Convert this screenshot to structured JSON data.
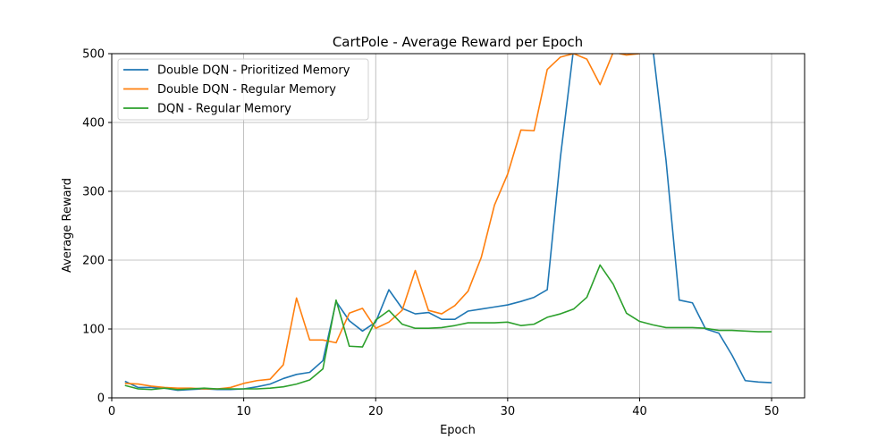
{
  "chart_data": {
    "type": "line",
    "title": "CartPole - Average Reward per Epoch",
    "xlabel": "Epoch",
    "ylabel": "Average Reward",
    "xlim": [
      0,
      52.5
    ],
    "ylim": [
      0,
      500
    ],
    "xticks": [
      0,
      10,
      20,
      30,
      40,
      50
    ],
    "yticks": [
      0,
      100,
      200,
      300,
      400,
      500
    ],
    "grid": true,
    "legend_position": "upper-left",
    "x": [
      1,
      2,
      3,
      4,
      5,
      6,
      7,
      8,
      9,
      10,
      11,
      12,
      13,
      14,
      15,
      16,
      17,
      18,
      19,
      20,
      21,
      22,
      23,
      24,
      25,
      26,
      27,
      28,
      29,
      30,
      31,
      32,
      33,
      34,
      35,
      36,
      37,
      38,
      39,
      40,
      41,
      42,
      43,
      44,
      45,
      46,
      47,
      48,
      49,
      50
    ],
    "series": [
      {
        "name": "Double DQN - Prioritized Memory",
        "color": "#1f77b4",
        "values": [
          24,
          15,
          15,
          14,
          11,
          12,
          13,
          12,
          12,
          13,
          16,
          20,
          28,
          34,
          37,
          54,
          140,
          112,
          97,
          110,
          157,
          130,
          122,
          124,
          114,
          114,
          126,
          129,
          132,
          135,
          140,
          146,
          157,
          350,
          508,
          520,
          520,
          520,
          520,
          520,
          508,
          345,
          142,
          138,
          100,
          94,
          62,
          25,
          23,
          22
        ]
      },
      {
        "name": "Double DQN - Regular Memory",
        "color": "#ff7f0e",
        "values": [
          21,
          20,
          17,
          15,
          14,
          14,
          13,
          13,
          15,
          21,
          25,
          27,
          48,
          145,
          84,
          84,
          80,
          123,
          130,
          101,
          110,
          127,
          185,
          127,
          122,
          134,
          155,
          204,
          280,
          325,
          389,
          388,
          477,
          495,
          500,
          492,
          455,
          502,
          498,
          500,
          520,
          520,
          520,
          520,
          520,
          520,
          520,
          520,
          520,
          520
        ]
      },
      {
        "name": "DQN - Regular Memory",
        "color": "#2ca02c",
        "values": [
          18,
          13,
          12,
          14,
          12,
          13,
          14,
          13,
          13,
          13,
          13,
          14,
          16,
          20,
          26,
          42,
          142,
          75,
          74,
          113,
          127,
          107,
          101,
          101,
          102,
          105,
          109,
          109,
          109,
          110,
          105,
          107,
          117,
          122,
          129,
          146,
          193,
          165,
          123,
          111,
          106,
          102,
          102,
          102,
          101,
          98,
          98,
          97,
          96,
          96
        ]
      }
    ]
  }
}
